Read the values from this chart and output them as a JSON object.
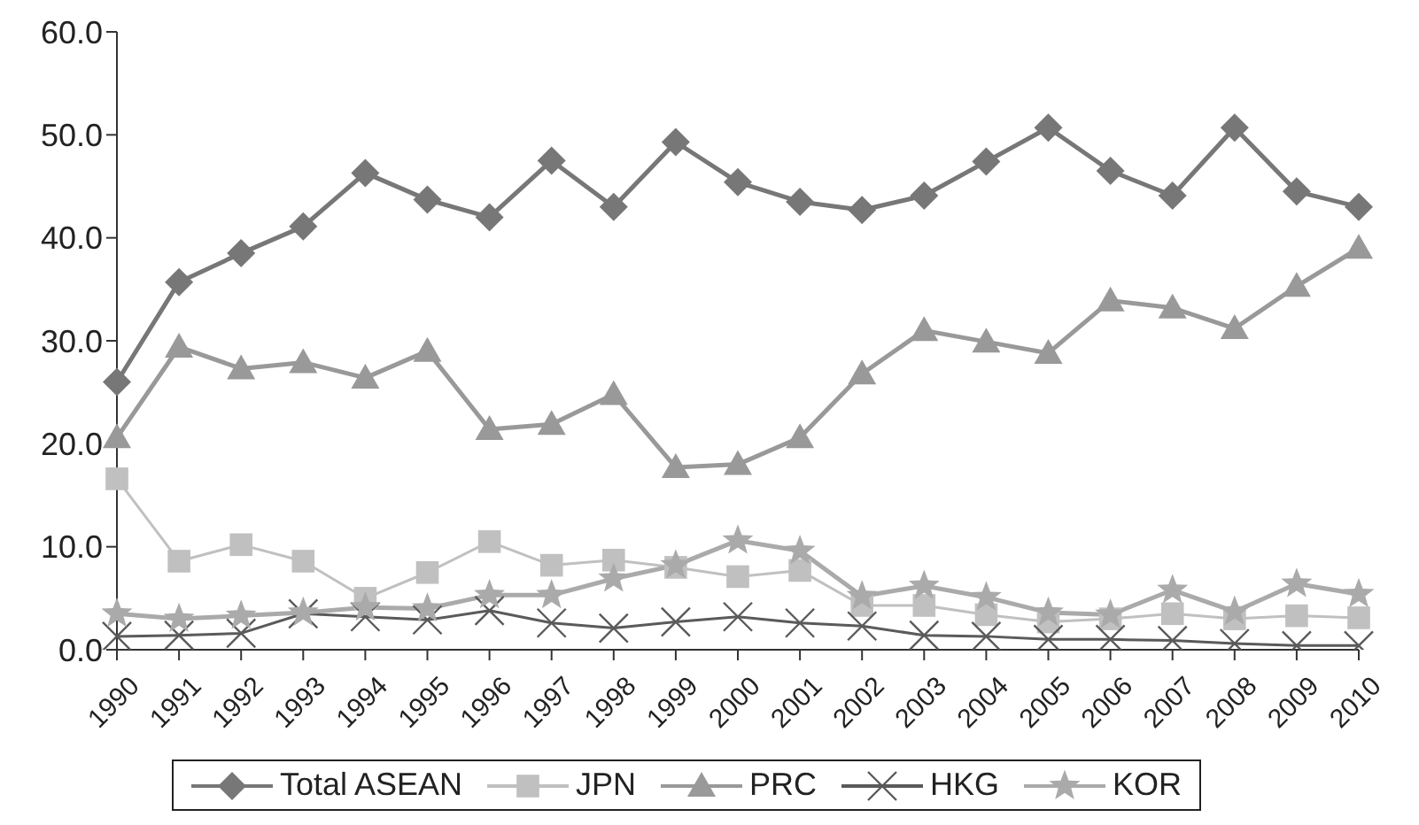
{
  "chart_data": {
    "type": "line",
    "categories": [
      "1990",
      "1991",
      "1992",
      "1993",
      "1994",
      "1995",
      "1996",
      "1997",
      "1998",
      "1999",
      "2000",
      "2001",
      "2002",
      "2003",
      "2004",
      "2005",
      "2006",
      "2007",
      "2008",
      "2009",
      "2010"
    ],
    "series": [
      {
        "name": "Total ASEAN",
        "color": "#777777",
        "marker": "diamond",
        "values": [
          26.0,
          35.7,
          38.5,
          41.1,
          46.3,
          43.7,
          42.0,
          47.5,
          43.0,
          49.3,
          45.4,
          43.5,
          42.7,
          44.1,
          47.4,
          50.7,
          46.5,
          44.1,
          50.7,
          44.5,
          43.0
        ]
      },
      {
        "name": "JPN",
        "color": "#c0c0c0",
        "marker": "square",
        "values": [
          16.6,
          8.6,
          10.2,
          8.6,
          5.0,
          7.5,
          10.5,
          8.2,
          8.7,
          8.0,
          7.1,
          7.7,
          4.3,
          4.3,
          3.4,
          2.7,
          3.0,
          3.5,
          3.0,
          3.3,
          3.1
        ]
      },
      {
        "name": "PRC",
        "color": "#999999",
        "marker": "triangle",
        "values": [
          20.6,
          29.4,
          27.3,
          27.9,
          26.4,
          29.0,
          21.4,
          21.9,
          24.8,
          17.7,
          18.0,
          20.6,
          26.8,
          31.0,
          29.9,
          28.8,
          33.9,
          33.2,
          31.2,
          35.3,
          39.0
        ]
      },
      {
        "name": "HKG",
        "color": "#5a5a5a",
        "marker": "cross",
        "values": [
          1.3,
          1.4,
          1.6,
          3.5,
          3.2,
          2.9,
          3.8,
          2.6,
          2.1,
          2.7,
          3.2,
          2.6,
          2.3,
          1.4,
          1.3,
          1.0,
          1.0,
          0.9,
          0.6,
          0.4,
          0.4
        ]
      },
      {
        "name": "KOR",
        "color": "#aaaaaa",
        "marker": "star",
        "values": [
          3.5,
          3.0,
          3.3,
          3.6,
          4.1,
          4.0,
          5.3,
          5.3,
          6.9,
          8.2,
          10.6,
          9.6,
          5.2,
          6.2,
          5.1,
          3.6,
          3.4,
          5.8,
          3.7,
          6.4,
          5.4
        ]
      }
    ],
    "ylim": [
      0,
      60
    ],
    "yticks": [
      {
        "value": 0,
        "label": "0.0"
      },
      {
        "value": 10,
        "label": "10.0"
      },
      {
        "value": 20,
        "label": "20.0"
      },
      {
        "value": 30,
        "label": "30.0"
      },
      {
        "value": 40,
        "label": "40.0"
      },
      {
        "value": 50,
        "label": "50.0"
      },
      {
        "value": 60,
        "label": "60.0"
      }
    ],
    "grid": false,
    "legend": "bottom"
  }
}
